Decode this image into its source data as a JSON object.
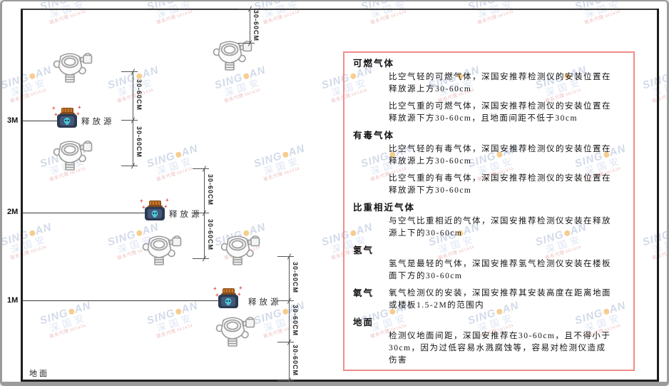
{
  "watermark": {
    "brand_left": "SING",
    "brand_right": "AN",
    "cn": "深国安",
    "subtext": "联系代理 661434"
  },
  "diagram": {
    "heights": [
      {
        "label": "3M"
      },
      {
        "label": "2M"
      },
      {
        "label": "1M"
      }
    ],
    "ground_label": "地面",
    "release_source_label": "释放源",
    "dim_label": "30-60CM",
    "sparkle_glyph": "+"
  },
  "panel": {
    "sections": [
      {
        "heading": "可燃气体",
        "paragraphs": [
          "比空气轻的可燃气体，深国安推荐检测仪的安装位置在释放源上方30-60cm",
          "比空气重的可燃气体，深国安推荐检测仪的安装位置在释放源下方30-60cm，且地面间距不低于30cm"
        ]
      },
      {
        "heading": "有毒气体",
        "paragraphs": [
          "比空气轻的有毒气体，深国安推荐检测仪的安装位置在释放源上方30-60cm",
          "比空气重的有毒气体，深国安推荐检测仪的安装位置在释放源下方30-60cm"
        ]
      },
      {
        "heading": "比重相近气体",
        "paragraphs": [
          "与空气比重相近的气体，深国安推荐检测仪安装在释放源上下的30-60cm"
        ]
      },
      {
        "heading": "氢气",
        "paragraphs": [
          "氢气是最轻的气体，深国安推荐氢气检测仪安装在楼板面下方的30-60cm"
        ]
      },
      {
        "heading": "氧气",
        "inline": true,
        "paragraphs": [
          "氧气检测仪的安装，深国安推荐其安装高度在距离地面或楼板1.5-2M的范围内"
        ]
      },
      {
        "heading": "地面",
        "paragraphs": [
          "检测仪地面间距，深国安推荐在30-60cm，且不得小于30cm，因为过低容易水溅腐蚀等，容易对检测仪造成伤害"
        ]
      }
    ]
  },
  "colors": {
    "panel_border": "#f28c8c",
    "room_line": "#1d1d1d",
    "watermark_blue": "#aebcd8",
    "watermark_dot": "#f0a632",
    "source_body": "#2c3a52",
    "source_cap": "#c9792c",
    "skull": "#4cc8d6",
    "sparkle_red": "#e04f4f"
  }
}
